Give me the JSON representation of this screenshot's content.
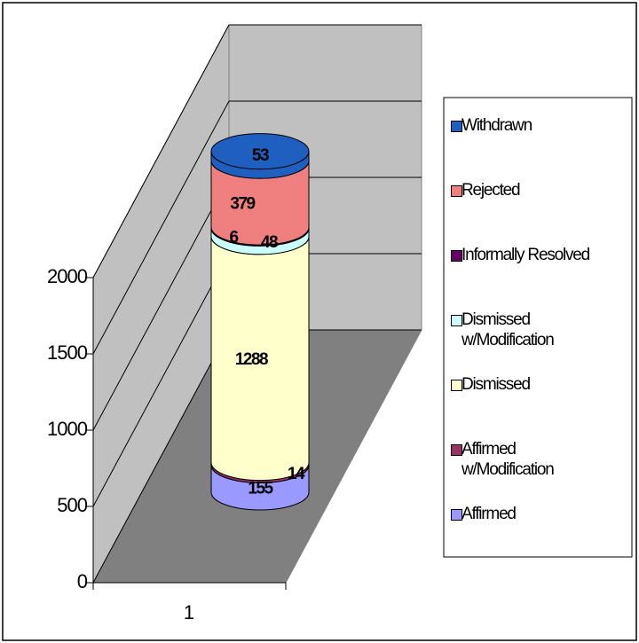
{
  "chart_data": {
    "type": "bar3d-cylinder-stacked",
    "categories": [
      "1"
    ],
    "series": [
      {
        "name": "Affirmed",
        "color": "#9999ff",
        "values": [
          155
        ]
      },
      {
        "name": "Affirmed w/Modification",
        "color": "#993366",
        "values": [
          14
        ]
      },
      {
        "name": "Dismissed",
        "color": "#ffffcc",
        "values": [
          1288
        ]
      },
      {
        "name": "Dismissed w/Modification",
        "color": "#ccffff",
        "values": [
          48
        ]
      },
      {
        "name": "Informally Resolved",
        "color": "#660066",
        "values": [
          6
        ]
      },
      {
        "name": "Rejected",
        "color": "#f08080",
        "values": [
          379
        ]
      },
      {
        "name": "Withdrawn",
        "color": "#1f5fbf",
        "values": [
          53
        ]
      }
    ],
    "ylim": [
      0,
      2000
    ],
    "yticks": [
      0,
      500,
      1000,
      1500,
      2000
    ],
    "grid": true,
    "legend": "right"
  }
}
